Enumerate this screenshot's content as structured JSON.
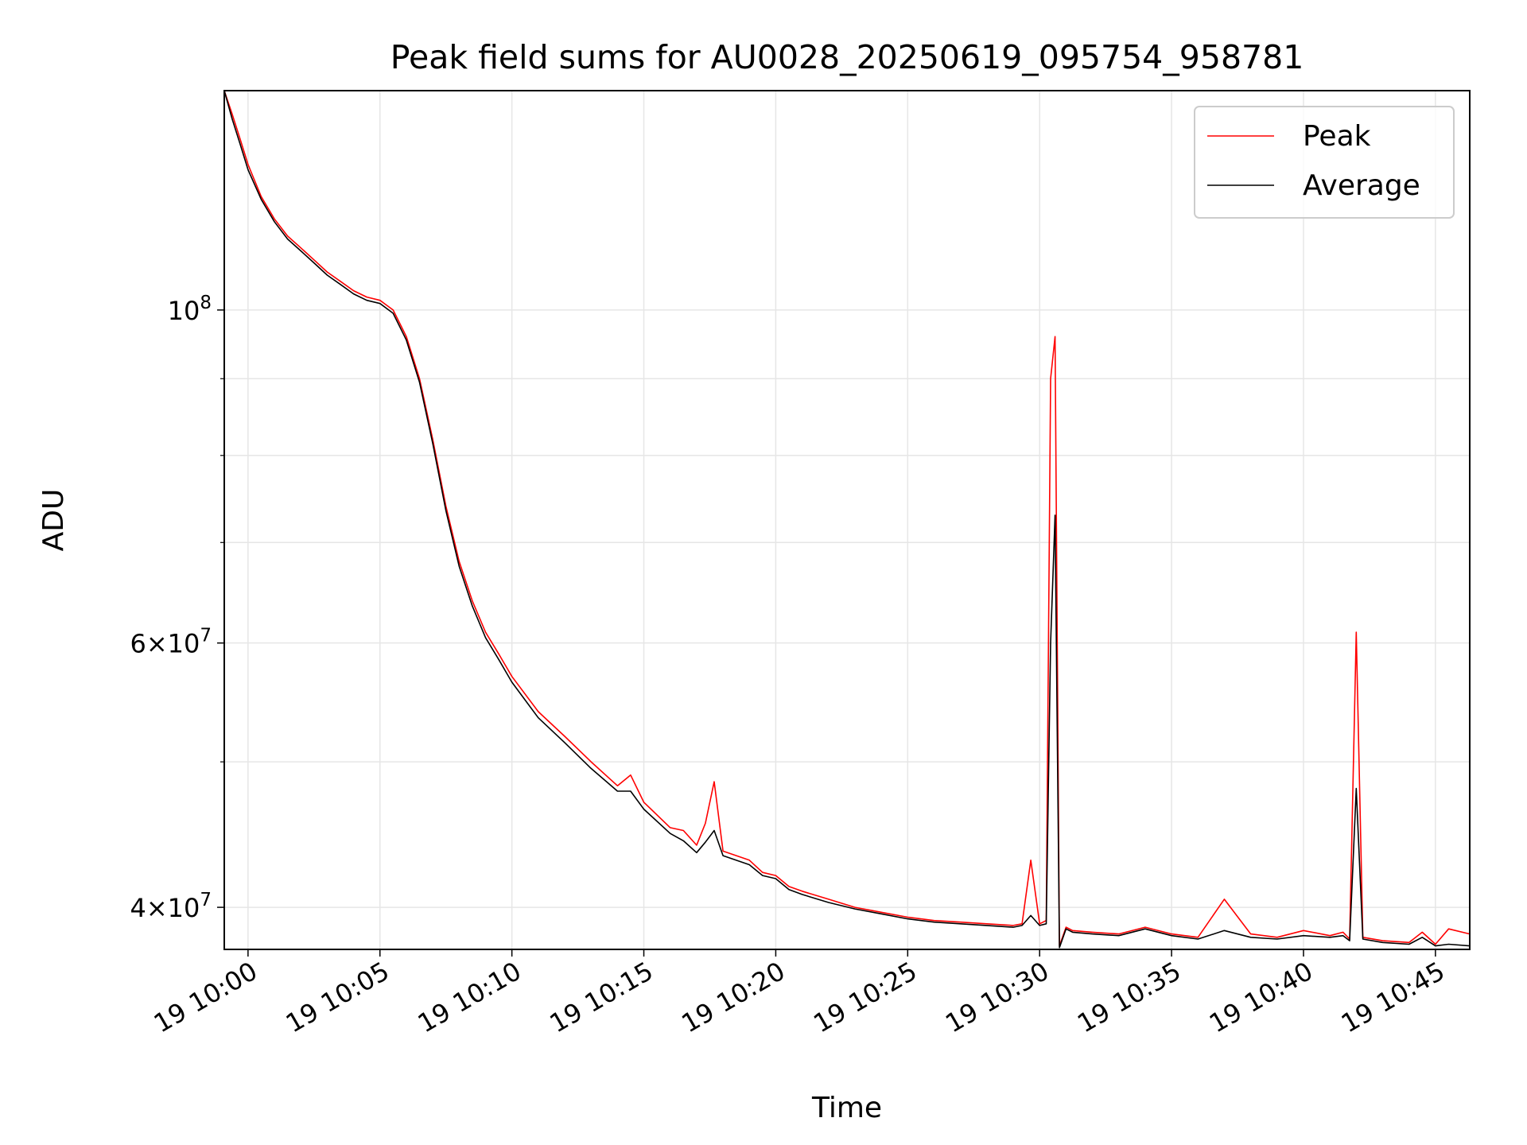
{
  "chart_data": {
    "type": "line",
    "title": "Peak field sums for AU0028_20250619_095754_958781",
    "xlabel": "Time",
    "ylabel": "ADU",
    "yscale": "log",
    "ylim": [
      37500000,
      140000000
    ],
    "xlim": [
      "2025-06-19 09:59:06",
      "2025-06-19 10:46:18"
    ],
    "grid": true,
    "legend": {
      "position": "top-right"
    },
    "x_ticks": [
      {
        "value": "2025-06-19 10:00",
        "label": "19 10:00"
      },
      {
        "value": "2025-06-19 10:05",
        "label": "19 10:05"
      },
      {
        "value": "2025-06-19 10:10",
        "label": "19 10:10"
      },
      {
        "value": "2025-06-19 10:15",
        "label": "19 10:15"
      },
      {
        "value": "2025-06-19 10:20",
        "label": "19 10:20"
      },
      {
        "value": "2025-06-19 10:25",
        "label": "19 10:25"
      },
      {
        "value": "2025-06-19 10:30",
        "label": "19 10:30"
      },
      {
        "value": "2025-06-19 10:35",
        "label": "19 10:35"
      },
      {
        "value": "2025-06-19 10:40",
        "label": "19 10:40"
      },
      {
        "value": "2025-06-19 10:45",
        "label": "19 10:45"
      }
    ],
    "y_ticks_major": [
      {
        "value": 40000000,
        "base": "4",
        "exp": "7"
      },
      {
        "value": 60000000,
        "base": "6",
        "exp": "7"
      },
      {
        "value": 100000000,
        "base": "",
        "exp": "8"
      }
    ],
    "y_ticks_minor": [
      50000000,
      70000000,
      80000000,
      90000000
    ],
    "x_values": [
      "2025-06-19 09:59:06",
      "2025-06-19 09:59:24",
      "2025-06-19 09:59:42",
      "2025-06-19 10:00:00",
      "2025-06-19 10:00:30",
      "2025-06-19 10:01:00",
      "2025-06-19 10:01:30",
      "2025-06-19 10:02:00",
      "2025-06-19 10:02:30",
      "2025-06-19 10:03:00",
      "2025-06-19 10:03:30",
      "2025-06-19 10:04:00",
      "2025-06-19 10:04:30",
      "2025-06-19 10:05:00",
      "2025-06-19 10:05:30",
      "2025-06-19 10:06:00",
      "2025-06-19 10:06:30",
      "2025-06-19 10:07:00",
      "2025-06-19 10:07:30",
      "2025-06-19 10:08:00",
      "2025-06-19 10:08:30",
      "2025-06-19 10:09:00",
      "2025-06-19 10:09:30",
      "2025-06-19 10:10:00",
      "2025-06-19 10:11:00",
      "2025-06-19 10:12:00",
      "2025-06-19 10:13:00",
      "2025-06-19 10:14:00",
      "2025-06-19 10:14:30",
      "2025-06-19 10:15:00",
      "2025-06-19 10:16:00",
      "2025-06-19 10:16:30",
      "2025-06-19 10:17:00",
      "2025-06-19 10:17:20",
      "2025-06-19 10:17:40",
      "2025-06-19 10:18:00",
      "2025-06-19 10:19:00",
      "2025-06-19 10:19:30",
      "2025-06-19 10:20:00",
      "2025-06-19 10:20:30",
      "2025-06-19 10:21:00",
      "2025-06-19 10:22:00",
      "2025-06-19 10:23:00",
      "2025-06-19 10:24:00",
      "2025-06-19 10:25:00",
      "2025-06-19 10:26:00",
      "2025-06-19 10:27:00",
      "2025-06-19 10:28:00",
      "2025-06-19 10:29:00",
      "2025-06-19 10:29:20",
      "2025-06-19 10:29:40",
      "2025-06-19 10:30:00",
      "2025-06-19 10:30:15",
      "2025-06-19 10:30:25",
      "2025-06-19 10:30:35",
      "2025-06-19 10:30:45",
      "2025-06-19 10:31:00",
      "2025-06-19 10:31:15",
      "2025-06-19 10:32:00",
      "2025-06-19 10:33:00",
      "2025-06-19 10:34:00",
      "2025-06-19 10:35:00",
      "2025-06-19 10:36:00",
      "2025-06-19 10:37:00",
      "2025-06-19 10:38:00",
      "2025-06-19 10:39:00",
      "2025-06-19 10:40:00",
      "2025-06-19 10:41:00",
      "2025-06-19 10:41:30",
      "2025-06-19 10:41:45",
      "2025-06-19 10:42:00",
      "2025-06-19 10:42:15",
      "2025-06-19 10:43:00",
      "2025-06-19 10:44:00",
      "2025-06-19 10:44:30",
      "2025-06-19 10:45:00",
      "2025-06-19 10:45:30",
      "2025-06-19 10:46:18"
    ],
    "series": [
      {
        "name": "Peak",
        "color": "#ff0000",
        "values": [
          140000000,
          135000000,
          130000000,
          125000000,
          119000000,
          115000000,
          112000000,
          110000000,
          108000000,
          106000000,
          104500000,
          103000000,
          102000000,
          101500000,
          100000000,
          96000000,
          90000000,
          82000000,
          74000000,
          68000000,
          64000000,
          61000000,
          59000000,
          57000000,
          54000000,
          52000000,
          50000000,
          48200000,
          49000000,
          47000000,
          45200000,
          45000000,
          44000000,
          45500000,
          48500000,
          43600000,
          43000000,
          42200000,
          42000000,
          41300000,
          41000000,
          40500000,
          40000000,
          39700000,
          39400000,
          39200000,
          39100000,
          39000000,
          38900000,
          39000000,
          43000000,
          39000000,
          39200000,
          90000000,
          96000000,
          37700000,
          38800000,
          38600000,
          38500000,
          38400000,
          38800000,
          38400000,
          38200000,
          40500000,
          38400000,
          38200000,
          38600000,
          38300000,
          38500000,
          38100000,
          61000000,
          38200000,
          38000000,
          37900000,
          38500000,
          37800000,
          38700000,
          38400000
        ]
      },
      {
        "name": "Average",
        "color": "#000000",
        "values": [
          140000000,
          134000000,
          129000000,
          124000000,
          118500000,
          114500000,
          111500000,
          109500000,
          107500000,
          105500000,
          104000000,
          102500000,
          101500000,
          101000000,
          99500000,
          95500000,
          89500000,
          81500000,
          73500000,
          67500000,
          63500000,
          60500000,
          58500000,
          56500000,
          53500000,
          51500000,
          49500000,
          47800000,
          47800000,
          46500000,
          44800000,
          44300000,
          43500000,
          44200000,
          45000000,
          43300000,
          42700000,
          42000000,
          41800000,
          41100000,
          40800000,
          40300000,
          39900000,
          39600000,
          39300000,
          39100000,
          39000000,
          38900000,
          38800000,
          38900000,
          39500000,
          38900000,
          39000000,
          60000000,
          73000000,
          37600000,
          38700000,
          38500000,
          38400000,
          38300000,
          38700000,
          38300000,
          38100000,
          38600000,
          38200000,
          38100000,
          38300000,
          38200000,
          38300000,
          38000000,
          48000000,
          38100000,
          37900000,
          37800000,
          38200000,
          37700000,
          37800000,
          37700000
        ]
      }
    ]
  }
}
